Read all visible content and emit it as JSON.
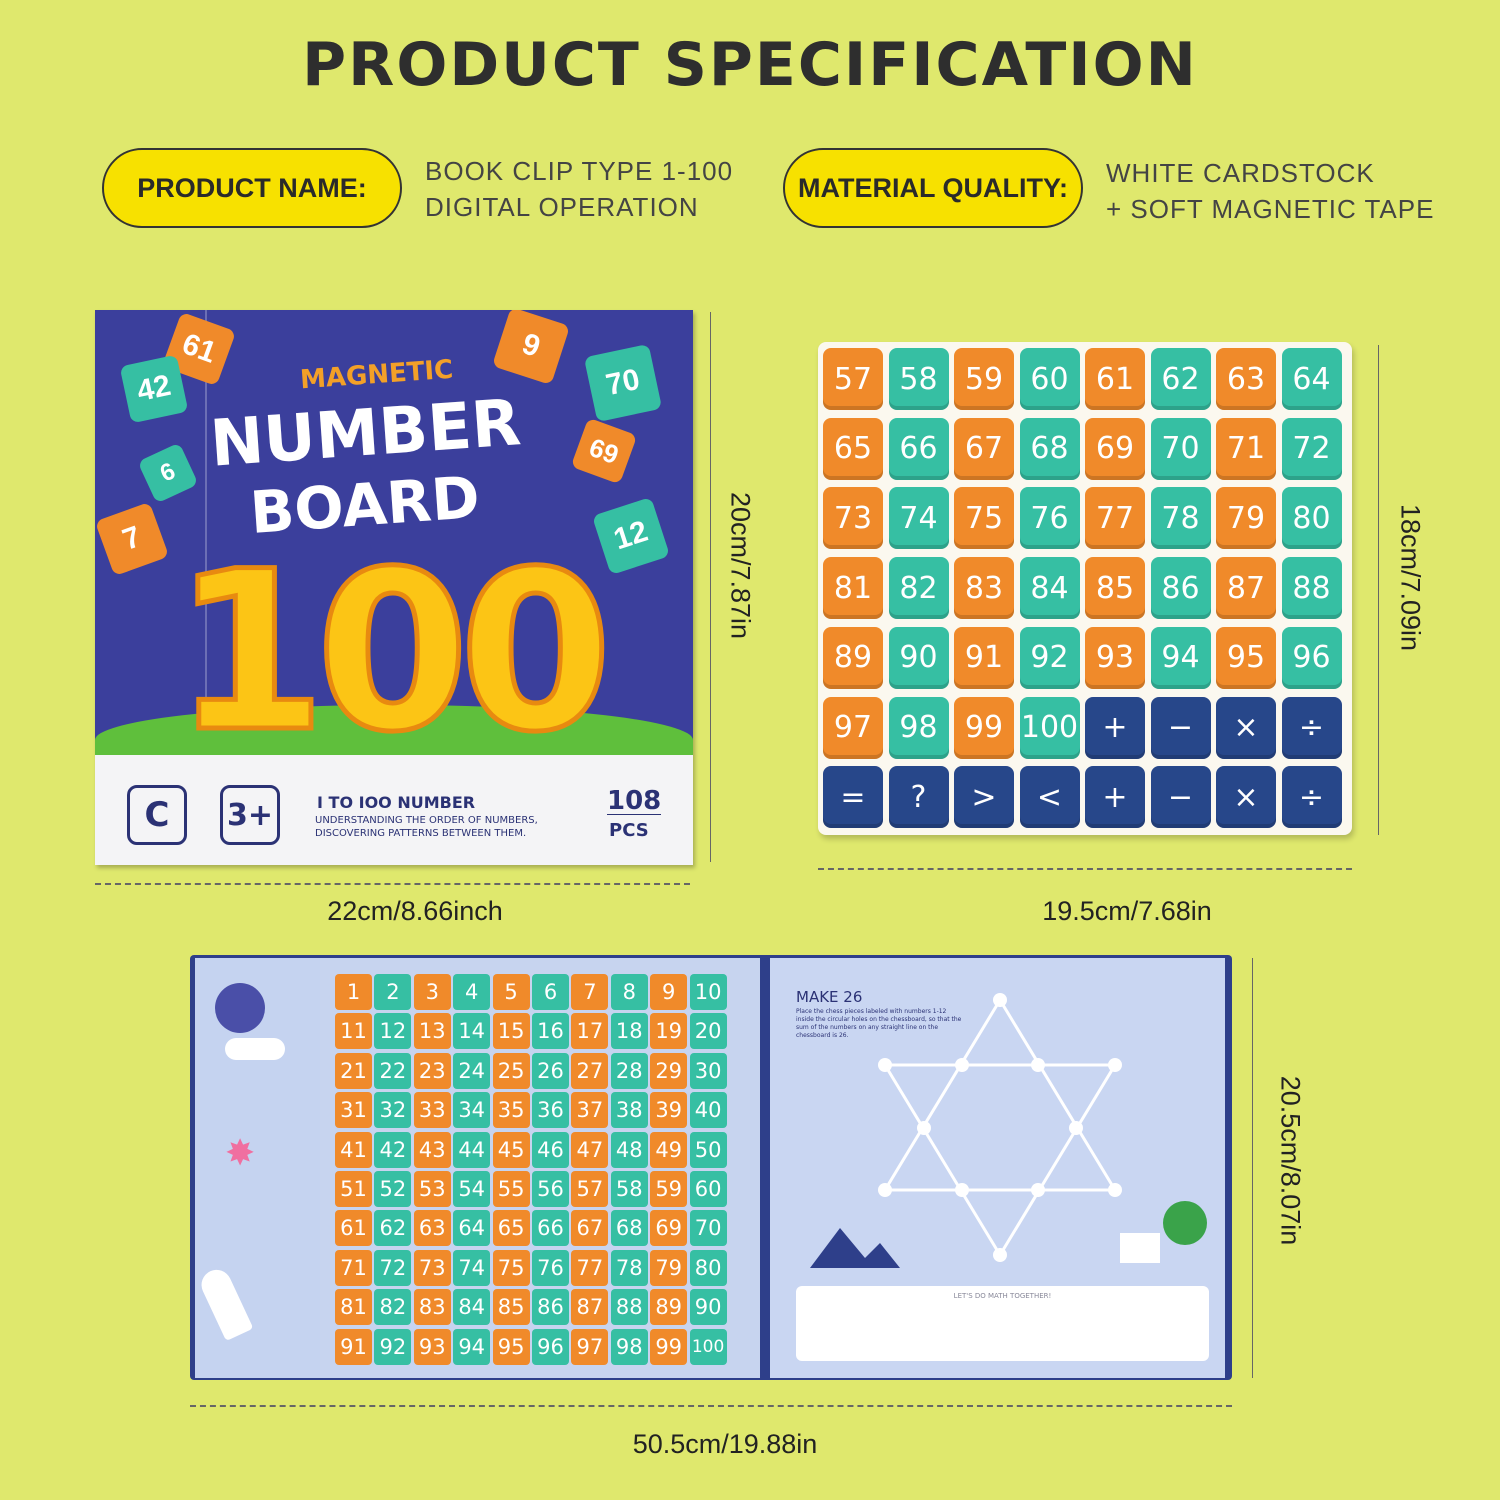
{
  "title": "PRODUCT SPECIFICATION",
  "specs": [
    {
      "label": "PRODUCT NAME:",
      "lines": [
        "BOOK CLIP TYPE 1-100",
        "DIGITAL OPERATION"
      ]
    },
    {
      "label": "MATERIAL QUALITY:",
      "lines": [
        "WHITE CARDSTOCK",
        "+ SOFT MAGNETIC TAPE"
      ]
    }
  ],
  "colors": {
    "background": "#dfe86d",
    "pill": "#f7e100",
    "orange": "#f08a2a",
    "teal": "#36bfa3",
    "navy": "#27478a",
    "cover": "#3b3f9c"
  },
  "cover": {
    "magnetic": "MAGNETIC",
    "number": "NUMBER",
    "board": "BOARD",
    "big": "100",
    "tiles": [
      "61",
      "42",
      "6",
      "7",
      "9",
      "70",
      "69",
      "12"
    ],
    "age": "3+",
    "line1": "I TO IOO NUMBER",
    "line2": "UNDERSTANDING THE ORDER OF NUMBERS,",
    "line3": "DISCOVERING PATTERNS BETWEEN THEM.",
    "count": "108",
    "pcs": "PCS",
    "magnet_icon": "magnet-icon"
  },
  "dims": {
    "cover_h": "20cm/7.87in",
    "cover_w": "22cm/8.66inch",
    "board_h": "18cm/7.09in",
    "board_w": "19.5cm/7.68in",
    "book_h": "20.5cm/8.07in",
    "book_w": "50.5cm/19.88in"
  },
  "board": {
    "rows": [
      [
        "57",
        "58",
        "59",
        "60",
        "61",
        "62",
        "63",
        "64"
      ],
      [
        "65",
        "66",
        "67",
        "68",
        "69",
        "70",
        "71",
        "72"
      ],
      [
        "73",
        "74",
        "75",
        "76",
        "77",
        "78",
        "79",
        "80"
      ],
      [
        "81",
        "82",
        "83",
        "84",
        "85",
        "86",
        "87",
        "88"
      ],
      [
        "89",
        "90",
        "91",
        "92",
        "93",
        "94",
        "95",
        "96"
      ],
      [
        "97",
        "98",
        "99",
        "100",
        "+",
        "−",
        "×",
        "÷"
      ],
      [
        "=",
        "?",
        ">",
        "<",
        "+",
        "−",
        "×",
        "÷"
      ]
    ]
  },
  "grid": {
    "numbers": [
      1,
      2,
      3,
      4,
      5,
      6,
      7,
      8,
      9,
      10,
      11,
      12,
      13,
      14,
      15,
      16,
      17,
      18,
      19,
      20,
      21,
      22,
      23,
      24,
      25,
      26,
      27,
      28,
      29,
      30,
      31,
      32,
      33,
      34,
      35,
      36,
      37,
      38,
      39,
      40,
      41,
      42,
      43,
      44,
      45,
      46,
      47,
      48,
      49,
      50,
      51,
      52,
      53,
      54,
      55,
      56,
      57,
      58,
      59,
      60,
      61,
      62,
      63,
      64,
      65,
      66,
      67,
      68,
      69,
      70,
      71,
      72,
      73,
      74,
      75,
      76,
      77,
      78,
      79,
      80,
      81,
      82,
      83,
      84,
      85,
      86,
      87,
      88,
      89,
      90,
      91,
      92,
      93,
      94,
      95,
      96,
      97,
      98,
      99,
      100
    ]
  },
  "page": {
    "title": "MAKE 26",
    "text": "Place the chess pieces labeled with numbers 1-12 inside the circular holes on the chessboard, so that the sum of the numbers on any straight line on the chessboard is 26.",
    "footer": "LET'S DO MATH TOGETHER!"
  }
}
